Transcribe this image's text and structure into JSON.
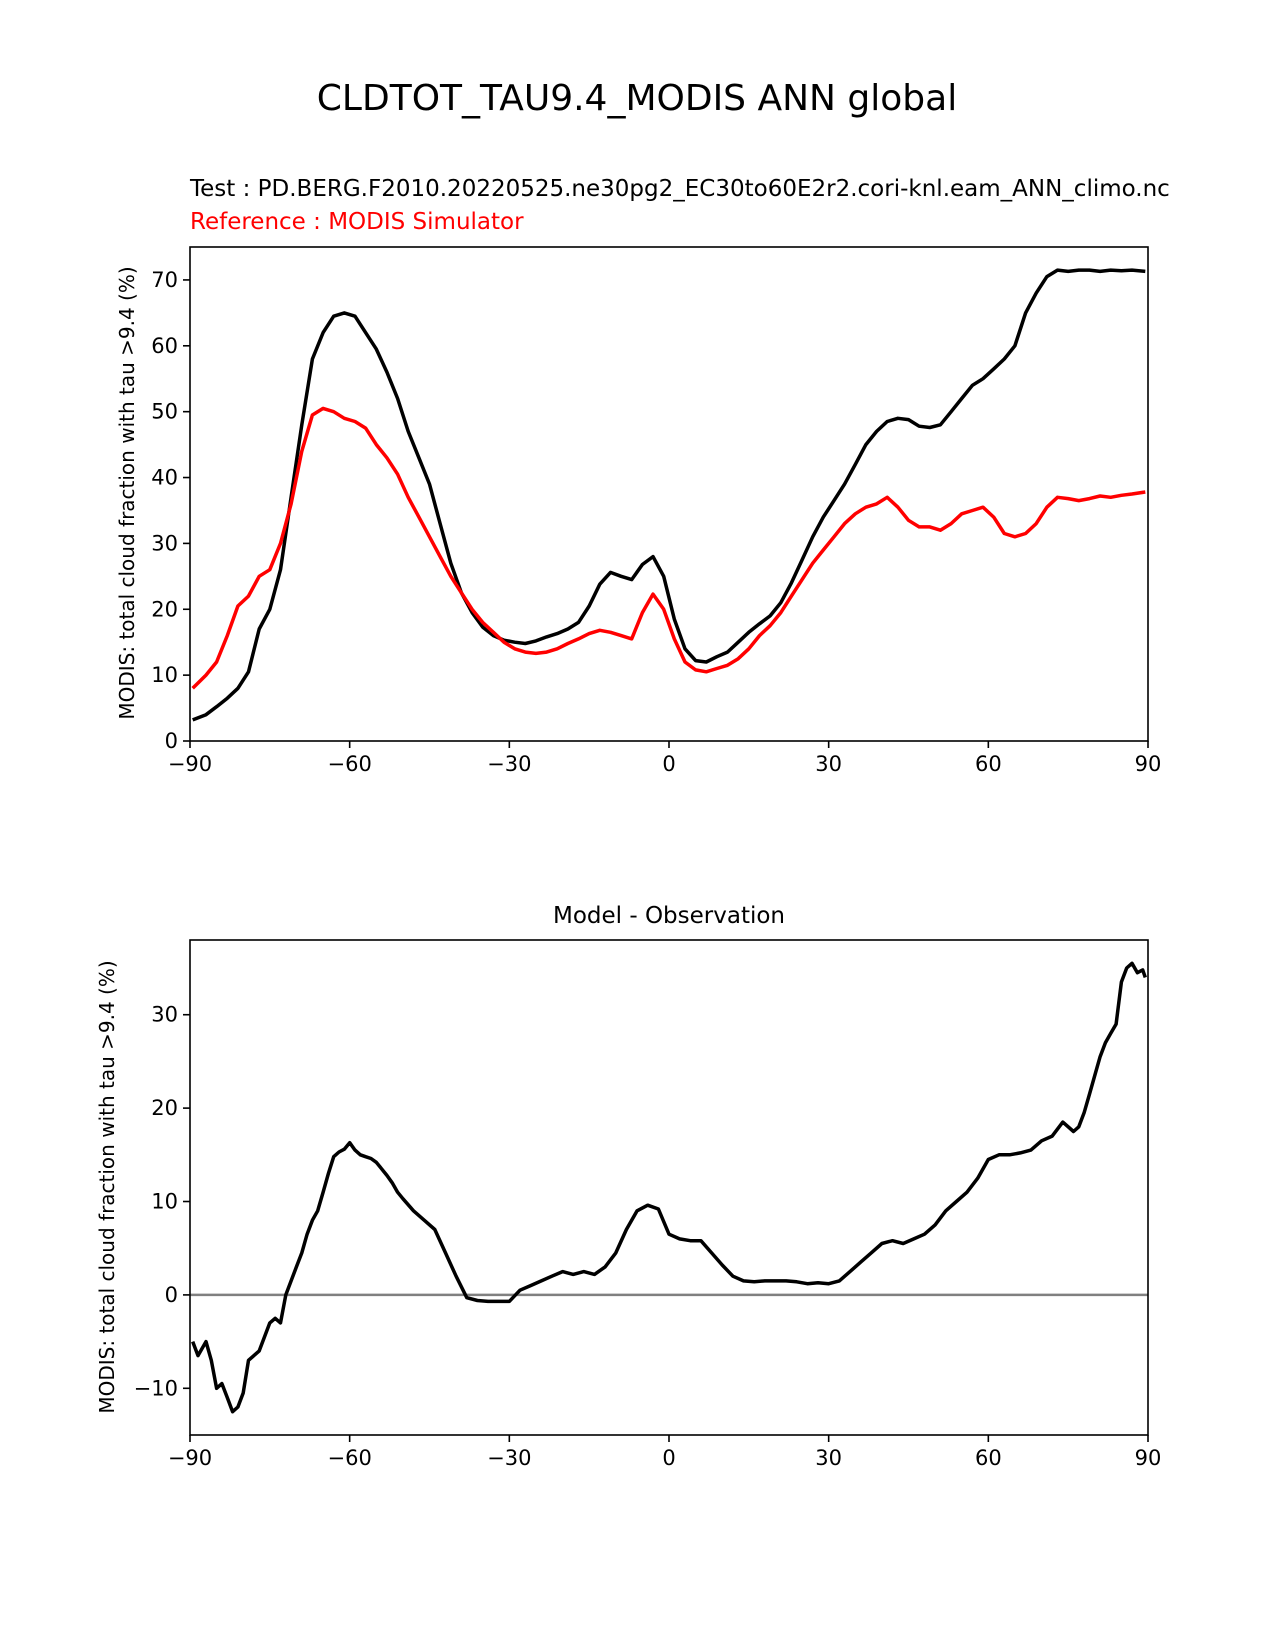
{
  "figure": {
    "suptitle": "CLDTOT_TAU9.4_MODIS ANN global"
  },
  "chart_data": [
    {
      "type": "line",
      "test_label": "Test : PD.BERG.F2010.20220525.ne30pg2_EC30to60E2r2.cori-knl.eam_ANN_climo.nc",
      "reference_label": "Reference : MODIS Simulator",
      "xlabel": "",
      "ylabel": "MODIS: total cloud fraction with tau >9.4 (%)",
      "xlim": [
        -90,
        90
      ],
      "ylim": [
        0,
        75
      ],
      "xticks": [
        -90,
        -60,
        -30,
        0,
        30,
        60,
        90
      ],
      "xtick_labels": [
        "−90",
        "−60",
        "−30",
        "0",
        "30",
        "60",
        "90"
      ],
      "yticks": [
        0,
        10,
        20,
        30,
        40,
        50,
        60,
        70
      ],
      "ytick_labels": [
        "0",
        "10",
        "20",
        "30",
        "40",
        "50",
        "60",
        "70"
      ],
      "grid": false,
      "series": [
        {
          "color": "#000000",
          "x": [
            -89.5,
            -87,
            -85,
            -83,
            -81,
            -79,
            -77,
            -75,
            -73,
            -71,
            -69,
            -67,
            -65,
            -63,
            -61,
            -59,
            -57,
            -55,
            -53,
            -51,
            -49,
            -47,
            -45,
            -43,
            -41,
            -39,
            -37,
            -35,
            -33,
            -31,
            -29,
            -27,
            -25,
            -23,
            -21,
            -19,
            -17,
            -15,
            -13,
            -11,
            -9,
            -7,
            -5,
            -3,
            -1,
            1,
            3,
            5,
            7,
            9,
            11,
            13,
            15,
            17,
            19,
            21,
            23,
            25,
            27,
            29,
            31,
            33,
            35,
            37,
            39,
            41,
            43,
            45,
            47,
            49,
            51,
            53,
            55,
            57,
            59,
            61,
            63,
            65,
            67,
            69,
            71,
            73,
            75,
            77,
            79,
            81,
            83,
            85,
            87,
            89.5
          ],
          "values": [
            3.2,
            4.0,
            5.2,
            6.5,
            8.0,
            10.5,
            17.0,
            20.0,
            26.0,
            37.0,
            48.0,
            58.0,
            62.0,
            64.5,
            65.0,
            64.5,
            62.0,
            59.5,
            56.0,
            52.0,
            47.0,
            43.0,
            39.0,
            33.0,
            27.0,
            22.5,
            19.5,
            17.3,
            16.0,
            15.3,
            15.0,
            14.8,
            15.2,
            15.8,
            16.3,
            17.0,
            18.0,
            20.5,
            23.8,
            25.6,
            25.0,
            24.5,
            26.8,
            28.0,
            25.0,
            18.5,
            14.0,
            12.2,
            12.0,
            12.8,
            13.5,
            15.0,
            16.5,
            17.8,
            19.0,
            21.0,
            24.0,
            27.5,
            31.0,
            34.0,
            36.5,
            39.0,
            42.0,
            45.0,
            47.0,
            48.5,
            49.0,
            48.8,
            47.8,
            47.6,
            48.0,
            50.0,
            52.0,
            54.0,
            55.0,
            56.5,
            58.0,
            60.0,
            65.0,
            68.0,
            70.5,
            71.5,
            71.3,
            71.5,
            71.5,
            71.3,
            71.5,
            71.4,
            71.5,
            71.3
          ]
        },
        {
          "color": "#ff0000",
          "x": [
            -89.5,
            -87,
            -85,
            -83,
            -81,
            -79,
            -77,
            -75,
            -73,
            -71,
            -69,
            -67,
            -65,
            -63,
            -61,
            -59,
            -57,
            -55,
            -53,
            -51,
            -49,
            -47,
            -45,
            -43,
            -41,
            -39,
            -37,
            -35,
            -33,
            -31,
            -29,
            -27,
            -25,
            -23,
            -21,
            -19,
            -17,
            -15,
            -13,
            -11,
            -9,
            -7,
            -5,
            -3,
            -1,
            1,
            3,
            5,
            7,
            9,
            11,
            13,
            15,
            17,
            19,
            21,
            23,
            25,
            27,
            29,
            31,
            33,
            35,
            37,
            39,
            41,
            43,
            45,
            47,
            49,
            51,
            53,
            55,
            57,
            59,
            61,
            63,
            65,
            67,
            69,
            71,
            73,
            75,
            77,
            79,
            81,
            83,
            85,
            87,
            89.5
          ],
          "values": [
            8.0,
            10.0,
            12.0,
            16.0,
            20.5,
            22.0,
            25.0,
            26.0,
            30.0,
            36.0,
            44.0,
            49.5,
            50.5,
            50.0,
            49.0,
            48.5,
            47.5,
            45.0,
            43.0,
            40.5,
            37.0,
            34.0,
            31.0,
            28.0,
            25.0,
            22.5,
            20.0,
            18.0,
            16.5,
            15.0,
            14.0,
            13.5,
            13.3,
            13.5,
            14.0,
            14.8,
            15.5,
            16.3,
            16.8,
            16.5,
            16.0,
            15.5,
            19.5,
            22.3,
            20.0,
            15.5,
            12.0,
            10.8,
            10.5,
            11.0,
            11.5,
            12.5,
            14.0,
            16.0,
            17.5,
            19.5,
            22.0,
            24.5,
            27.0,
            29.0,
            31.0,
            33.0,
            34.5,
            35.5,
            36.0,
            37.0,
            35.5,
            33.5,
            32.5,
            32.5,
            32.0,
            33.0,
            34.5,
            35.0,
            35.5,
            34.0,
            31.5,
            31.0,
            31.5,
            33.0,
            35.5,
            37.0,
            36.8,
            36.5,
            36.8,
            37.2,
            37.0,
            37.3,
            37.5,
            37.8
          ]
        }
      ]
    },
    {
      "type": "line",
      "title": "Model - Observation",
      "xlabel": "",
      "ylabel": "MODIS: total cloud fraction with tau >9.4 (%)",
      "xlim": [
        -90,
        90
      ],
      "ylim": [
        -15,
        38
      ],
      "xticks": [
        -90,
        -60,
        -30,
        0,
        30,
        60,
        90
      ],
      "xtick_labels": [
        "−90",
        "−60",
        "−30",
        "0",
        "30",
        "60",
        "90"
      ],
      "yticks": [
        -10,
        0,
        10,
        20,
        30
      ],
      "ytick_labels": [
        "−10",
        "0",
        "10",
        "20",
        "30"
      ],
      "grid": false,
      "zero_line_color": "#808080",
      "series": [
        {
          "color": "#000000",
          "x": [
            -89.5,
            -88.5,
            -87,
            -86,
            -85,
            -84,
            -83,
            -82,
            -81,
            -80,
            -79,
            -78,
            -77,
            -76,
            -75,
            -74,
            -73,
            -72,
            -71,
            -70,
            -69,
            -68,
            -67,
            -66,
            -65,
            -64,
            -63,
            -62,
            -61,
            -60,
            -59,
            -58,
            -57,
            -56,
            -55,
            -54,
            -53,
            -52,
            -51,
            -50,
            -48,
            -46,
            -44,
            -42,
            -40,
            -38,
            -36,
            -34,
            -32,
            -30,
            -28,
            -26,
            -24,
            -22,
            -20,
            -18,
            -16,
            -14,
            -12,
            -10,
            -8,
            -6,
            -4,
            -2,
            0,
            2,
            4,
            6,
            8,
            10,
            12,
            14,
            16,
            18,
            20,
            22,
            24,
            26,
            28,
            30,
            32,
            34,
            36,
            38,
            40,
            42,
            44,
            46,
            48,
            50,
            52,
            54,
            56,
            58,
            60,
            62,
            64,
            66,
            68,
            70,
            72,
            74,
            76,
            77,
            78,
            79,
            80,
            81,
            82,
            83,
            84,
            85,
            86,
            87,
            88,
            89,
            89.5
          ],
          "values": [
            -5.0,
            -6.5,
            -5.0,
            -7.0,
            -10.0,
            -9.5,
            -11.0,
            -12.5,
            -12.0,
            -10.5,
            -7.0,
            -6.5,
            -6.0,
            -4.5,
            -3.0,
            -2.5,
            -3.0,
            0.0,
            1.5,
            3.0,
            4.5,
            6.5,
            8.0,
            9.0,
            11.0,
            13.0,
            14.8,
            15.3,
            15.6,
            16.3,
            15.5,
            15.0,
            14.8,
            14.6,
            14.2,
            13.5,
            12.8,
            12.0,
            11.0,
            10.3,
            9.0,
            8.0,
            7.0,
            4.5,
            2.0,
            -0.3,
            -0.6,
            -0.7,
            -0.7,
            -0.7,
            0.5,
            1.0,
            1.5,
            2.0,
            2.5,
            2.2,
            2.5,
            2.2,
            3.0,
            4.5,
            7.0,
            9.0,
            9.6,
            9.2,
            6.5,
            6.0,
            5.8,
            5.8,
            4.5,
            3.2,
            2.0,
            1.5,
            1.4,
            1.5,
            1.5,
            1.5,
            1.4,
            1.2,
            1.3,
            1.2,
            1.5,
            2.5,
            3.5,
            4.5,
            5.5,
            5.8,
            5.5,
            6.0,
            6.5,
            7.5,
            9.0,
            10.0,
            11.0,
            12.5,
            14.5,
            15.0,
            15.0,
            15.2,
            15.5,
            16.5,
            17.0,
            18.5,
            17.5,
            18.0,
            19.5,
            21.5,
            23.5,
            25.5,
            27.0,
            28.0,
            29.0,
            33.5,
            35.0,
            35.5,
            34.5,
            34.8,
            34.0
          ]
        }
      ]
    }
  ]
}
